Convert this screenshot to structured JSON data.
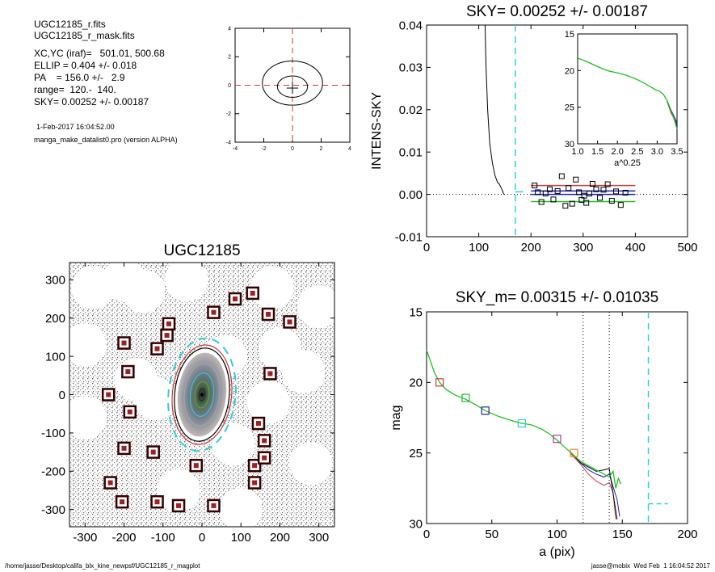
{
  "info": {
    "lines": [
      "UGC12185_r.fits",
      "UGC12185_r_mask.fits",
      "XC,YC (iraf)=   501.01, 500.68",
      "ELLIP = 0.404 +/- 0.018",
      "PA    = 156.0 +/-   2.9",
      "range=  120.-  140.",
      "SKY= 0.00252 +/- 0.00187"
    ],
    "date": "1-Feb-2017 16:04:52.00",
    "program": "manga_make_datalist0.pro (version ALPHA)"
  },
  "footer": {
    "path": "/home/jasse/Desktop/califa_blx_kine_newpsf/UGC12185_r_magplot",
    "user": "jasse@mobix  Wed Feb  1 16:04:52 2017"
  },
  "colors": {
    "red": "#c83c3c",
    "green": "#22c022",
    "blue": "#2020b0",
    "cyan": "#30d0d8",
    "purple": "#a040a0",
    "orange": "#e08a30",
    "gray": "#777777"
  },
  "chart_data": [
    {
      "id": "contour-plot",
      "type": "contour",
      "title": "",
      "xlim": [
        -4,
        4
      ],
      "ylim": [
        -4,
        4
      ],
      "xticks": [
        -4,
        -2,
        0,
        2,
        4
      ],
      "yticks": [
        -4,
        -2,
        0,
        2,
        4
      ],
      "contours": [
        {
          "a": 2.1,
          "b": 1.55,
          "cx": 0,
          "cy": 0.15
        },
        {
          "a": 1.05,
          "b": 0.75,
          "cx": 0,
          "cy": -0.1
        }
      ]
    },
    {
      "id": "sky-plot",
      "type": "line",
      "title": "SKY= 0.00252 +/- 0.00187",
      "ylabel": "INTENS-SKY",
      "xlim": [
        0,
        500
      ],
      "ylim": [
        -0.01,
        0.04
      ],
      "xticks": [
        0,
        100,
        200,
        300,
        400,
        500
      ],
      "yticks": [
        -0.01,
        0.0,
        0.01,
        0.02,
        0.03,
        0.04
      ],
      "ytick_labels": [
        "-0.01",
        "0.00",
        "0.01",
        "0.02",
        "0.03",
        "0.04"
      ],
      "profile": [
        [
          112,
          0.04
        ],
        [
          114,
          0.03
        ],
        [
          117,
          0.02
        ],
        [
          121,
          0.012
        ],
        [
          126,
          0.0075
        ],
        [
          131,
          0.0045
        ],
        [
          136,
          0.0028
        ],
        [
          139,
          0.0025
        ],
        [
          142,
          0.0018
        ],
        [
          145,
          0.001
        ],
        [
          148,
          0.0
        ]
      ],
      "sky_points": [
        [
          207,
          0.0021
        ],
        [
          213,
          0.0005
        ],
        [
          220,
          -0.0018
        ],
        [
          228,
          0.0002
        ],
        [
          236,
          0.0012
        ],
        [
          243,
          -0.0012
        ],
        [
          251,
          0.0008
        ],
        [
          259,
          0.0043
        ],
        [
          266,
          -0.0027
        ],
        [
          272,
          0.0015
        ],
        [
          279,
          -0.0022
        ],
        [
          286,
          0.0035
        ],
        [
          292,
          0.0005
        ],
        [
          297,
          -0.0013
        ],
        [
          302,
          -0.0003
        ],
        [
          306,
          -0.002
        ],
        [
          312,
          0.0002
        ],
        [
          318,
          0.0025
        ],
        [
          325,
          0.0012
        ],
        [
          332,
          -0.0008
        ],
        [
          339,
          0.0011
        ],
        [
          347,
          0.0024
        ],
        [
          355,
          -0.0015
        ],
        [
          363,
          0.0007
        ],
        [
          372,
          -0.0025
        ],
        [
          381,
          0.0004
        ]
      ],
      "hlines": [
        {
          "y": 0.0021,
          "x0": 200,
          "x1": 400,
          "color": "red"
        },
        {
          "y": 0.0008,
          "x0": 200,
          "x1": 400,
          "color": "blue"
        },
        {
          "y": 0.0,
          "x0": 200,
          "x1": 400,
          "color": "blue"
        },
        {
          "y": -0.0017,
          "x0": 200,
          "x1": 400,
          "color": "green"
        },
        {
          "y": 0.0006,
          "x0": 170,
          "x1": 185,
          "color": "cyan"
        }
      ],
      "vline": 170,
      "zero_line": 0,
      "inset": {
        "xlabel": "a^0.25",
        "xlim": [
          1.0,
          3.5
        ],
        "ylim": [
          15,
          30
        ],
        "xticks": [
          1.0,
          1.5,
          2.0,
          2.5,
          3.0,
          3.5
        ],
        "xtick_labels": [
          "1.0",
          "1.5",
          "2.0",
          "2.5",
          "3.0",
          "3.5"
        ],
        "yticks": [
          15,
          20,
          25,
          30
        ],
        "curve": [
          [
            1.0,
            18.3
          ],
          [
            1.2,
            18.7
          ],
          [
            1.4,
            19.2
          ],
          [
            1.6,
            19.7
          ],
          [
            1.8,
            20.1
          ],
          [
            2.0,
            20.3
          ],
          [
            2.2,
            20.6
          ],
          [
            2.4,
            21.0
          ],
          [
            2.6,
            21.5
          ],
          [
            2.8,
            22.1
          ],
          [
            2.95,
            22.6
          ],
          [
            3.05,
            22.8
          ],
          [
            3.15,
            23.2
          ],
          [
            3.25,
            24.1
          ],
          [
            3.35,
            25.5
          ],
          [
            3.45,
            27.0
          ],
          [
            3.5,
            28.0
          ]
        ],
        "tails": {
          "red": [
            [
              3.25,
              24.2
            ],
            [
              3.35,
              25.8
            ],
            [
              3.45,
              26.8
            ],
            [
              3.5,
              27.5
            ]
          ],
          "blue": [
            [
              3.25,
              24.1
            ],
            [
              3.35,
              25.4
            ],
            [
              3.45,
              26.5
            ],
            [
              3.5,
              27.2
            ]
          ],
          "black": [
            [
              3.25,
              24.2
            ],
            [
              3.35,
              25.6
            ],
            [
              3.45,
              26.9
            ],
            [
              3.5,
              27.6
            ]
          ]
        }
      }
    },
    {
      "id": "image-plot",
      "type": "scatter",
      "title": "UGC12185",
      "xlim": [
        -340,
        340
      ],
      "ylim": [
        -345,
        345
      ],
      "xticks": [
        -300,
        -200,
        -100,
        0,
        100,
        200,
        300
      ],
      "yticks": [
        -300,
        -200,
        -100,
        0,
        100,
        200,
        300
      ],
      "mask_regions": [
        [
          -280,
          280
        ],
        [
          -150,
          270
        ],
        [
          -300,
          130
        ],
        [
          60,
          100
        ],
        [
          200,
          120
        ],
        [
          -120,
          -10
        ],
        [
          170,
          -20
        ],
        [
          280,
          -180
        ],
        [
          -60,
          -250
        ],
        [
          180,
          280
        ],
        [
          -300,
          -60
        ],
        [
          100,
          -300
        ],
        [
          260,
          60
        ],
        [
          -200,
          300
        ],
        [
          300,
          230
        ],
        [
          -40,
          300
        ],
        [
          -170,
          40
        ],
        [
          80,
          -130
        ]
      ],
      "mask_radius": 55,
      "star_boxes": [
        [
          -200,
          135
        ],
        [
          -190,
          60
        ],
        [
          -185,
          -45
        ],
        [
          -240,
          0
        ],
        [
          -200,
          -140
        ],
        [
          -235,
          -230
        ],
        [
          -205,
          -280
        ],
        [
          -115,
          -280
        ],
        [
          -60,
          -290
        ],
        [
          -85,
          185
        ],
        [
          -90,
          155
        ],
        [
          -115,
          120
        ],
        [
          -125,
          -150
        ],
        [
          -15,
          -185
        ],
        [
          30,
          215
        ],
        [
          85,
          250
        ],
        [
          130,
          265
        ],
        [
          170,
          210
        ],
        [
          225,
          190
        ],
        [
          175,
          55
        ],
        [
          145,
          -75
        ],
        [
          160,
          -120
        ],
        [
          135,
          -185
        ],
        [
          160,
          -165
        ],
        [
          135,
          -230
        ],
        [
          30,
          -290
        ]
      ],
      "ellipses": [
        {
          "a": 145,
          "b": 86,
          "pa": 156,
          "color": "cyan",
          "dashed": true
        },
        {
          "a": 128,
          "b": 76,
          "pa": 156,
          "color": "red",
          "dashed": false
        },
        {
          "a": 120,
          "b": 70,
          "pa": 156,
          "color": "black",
          "dashed": false
        }
      ]
    },
    {
      "id": "mag-plot",
      "type": "line",
      "title": "SKY_m=  0.00315 +/- 0.01035",
      "xlabel": "a (pix)",
      "ylabel": "mag",
      "xlim": [
        0,
        200
      ],
      "ylim": [
        15,
        30
      ],
      "xticks": [
        0,
        50,
        100,
        150,
        200
      ],
      "yticks": [
        15,
        20,
        25,
        30
      ],
      "profile": [
        [
          0,
          17.7
        ],
        [
          3,
          18.5
        ],
        [
          6,
          19.3
        ],
        [
          10,
          20.0
        ],
        [
          15,
          20.5
        ],
        [
          22,
          20.9
        ],
        [
          30,
          21.2
        ],
        [
          38,
          21.6
        ],
        [
          45,
          22.0
        ],
        [
          55,
          22.4
        ],
        [
          65,
          22.7
        ],
        [
          73,
          22.9
        ],
        [
          80,
          23.0
        ],
        [
          88,
          23.3
        ],
        [
          95,
          23.7
        ],
        [
          100,
          24.1
        ],
        [
          106,
          24.6
        ],
        [
          112,
          25.1
        ],
        [
          118,
          25.6
        ],
        [
          124,
          25.9
        ],
        [
          130,
          26.2
        ],
        [
          136,
          26.5
        ],
        [
          140,
          26.7
        ],
        [
          143,
          26.3
        ],
        [
          145,
          27.5
        ],
        [
          147,
          26.8
        ],
        [
          149,
          27.2
        ]
      ],
      "tails": {
        "red": [
          [
            110,
            25.0
          ],
          [
            118,
            25.8
          ],
          [
            124,
            26.5
          ],
          [
            130,
            27.0
          ],
          [
            136,
            27.3
          ],
          [
            140,
            27.1
          ],
          [
            143,
            27.8
          ],
          [
            145,
            29.7
          ]
        ],
        "blue": [
          [
            110,
            24.9
          ],
          [
            118,
            25.7
          ],
          [
            124,
            26.2
          ],
          [
            130,
            26.5
          ],
          [
            136,
            26.7
          ],
          [
            140,
            26.5
          ],
          [
            146,
            28.3
          ],
          [
            148,
            29.5
          ]
        ],
        "black": [
          [
            110,
            24.9
          ],
          [
            118,
            25.7
          ],
          [
            124,
            26.0
          ],
          [
            130,
            26.3
          ],
          [
            136,
            26.2
          ],
          [
            140,
            26.1
          ],
          [
            146,
            29.7
          ]
        ]
      },
      "markers": [
        [
          10,
          20.0,
          "red"
        ],
        [
          30,
          21.1,
          "green"
        ],
        [
          45,
          22.0,
          "blue"
        ],
        [
          73,
          22.9,
          "cyan"
        ],
        [
          100,
          24.0,
          "purple"
        ],
        [
          113,
          25.0,
          "orange"
        ]
      ],
      "vlines_dotted": [
        120,
        140
      ],
      "vline_dashed": 170,
      "sky_line": {
        "y": 28.6,
        "x0": 170,
        "x1": 185
      }
    }
  ]
}
